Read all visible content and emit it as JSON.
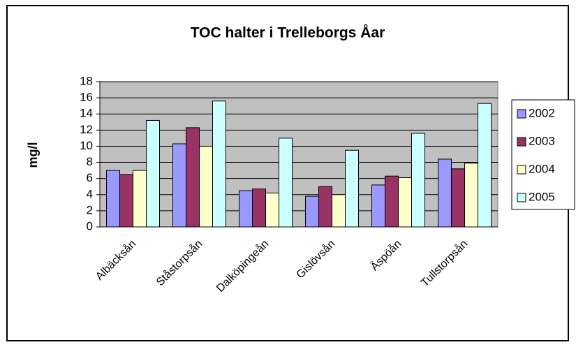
{
  "chart_data": {
    "type": "bar",
    "title": "TOC halter i Trelleborgs Åar",
    "y_label": "mg/l",
    "categories": [
      "Albäcksån",
      "Ståstorpsån",
      "Dalköpingeån",
      "Gislövsån",
      "Äspöån",
      "Tullstorpsån"
    ],
    "series": [
      {
        "name": "2002",
        "color": "#9999ff",
        "values": [
          7.0,
          10.3,
          4.5,
          3.8,
          5.2,
          8.4
        ]
      },
      {
        "name": "2003",
        "color": "#993366",
        "values": [
          6.5,
          12.3,
          4.7,
          5.0,
          6.3,
          7.2
        ]
      },
      {
        "name": "2004",
        "color": "#ffffcc",
        "values": [
          7.0,
          10.0,
          4.2,
          4.0,
          6.1,
          7.9
        ]
      },
      {
        "name": "2005",
        "color": "#ccffff",
        "values": [
          13.2,
          15.6,
          11.0,
          9.5,
          11.6,
          15.3
        ]
      }
    ],
    "ylim": [
      0,
      18
    ],
    "yticks": [
      0,
      2,
      4,
      6,
      8,
      10,
      12,
      14,
      16,
      18
    ],
    "grid": true,
    "legend": "right"
  }
}
